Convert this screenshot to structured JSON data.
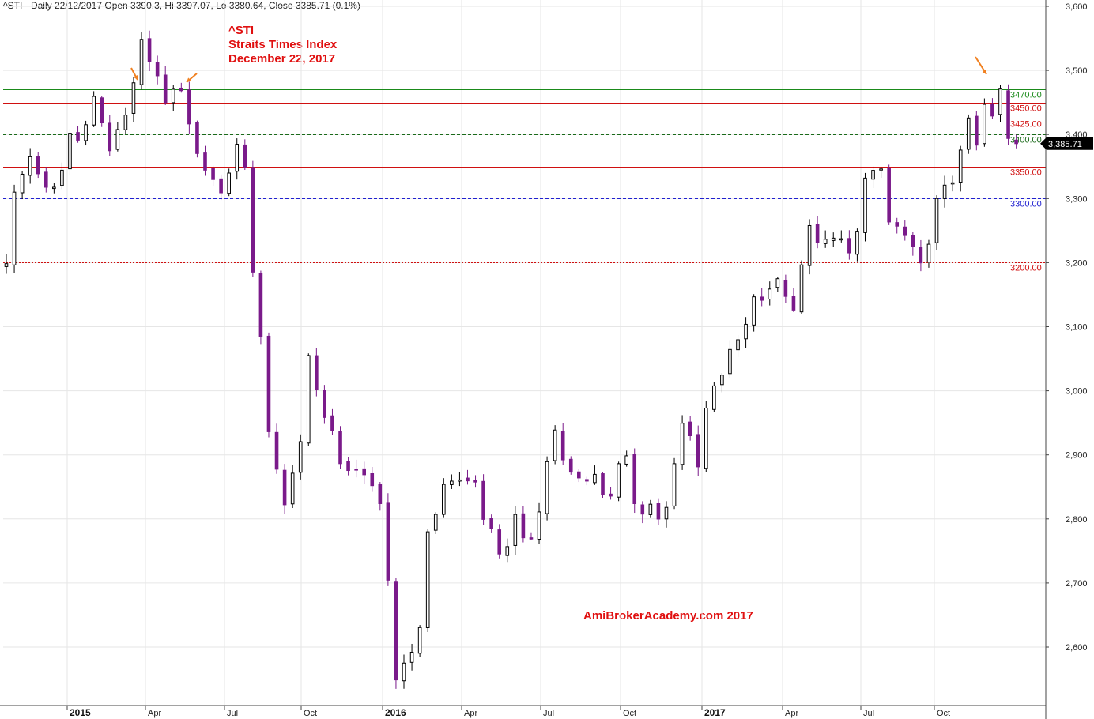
{
  "header": {
    "ticker_info": "^STI - Daily 22/12/2017 Open 3390.3, Hi 3397.07, Lo 3380.64, Close 3385.71 (0.1%)"
  },
  "title": {
    "symbol": "^STI",
    "name": "Straits Times Index",
    "date": "December 22, 2017"
  },
  "watermark": "AmiBrokerAcademy.com  2017",
  "chart_data": {
    "type": "candlestick",
    "ylim": [
      2510,
      3610
    ],
    "y_ticks": [
      {
        "value": 2600,
        "label": "2,600"
      },
      {
        "value": 2700,
        "label": "2,700"
      },
      {
        "value": 2800,
        "label": "2,800"
      },
      {
        "value": 2900,
        "label": "2,900"
      },
      {
        "value": 3000,
        "label": "3,000"
      },
      {
        "value": 3100,
        "label": "3,100"
      },
      {
        "value": 3200,
        "label": "3,200"
      },
      {
        "value": 3300,
        "label": "3,300"
      },
      {
        "value": 3400,
        "label": "3,400"
      },
      {
        "value": 3500,
        "label": "3,500"
      },
      {
        "value": 3600,
        "label": "3,600"
      }
    ],
    "x_ticks": [
      {
        "label": "2015",
        "bold": true
      },
      {
        "label": "Apr",
        "bold": false
      },
      {
        "label": "Jul",
        "bold": false
      },
      {
        "label": "Oct",
        "bold": false
      },
      {
        "label": "2016",
        "bold": true
      },
      {
        "label": "Apr",
        "bold": false
      },
      {
        "label": "Jul",
        "bold": false
      },
      {
        "label": "Oct",
        "bold": false
      },
      {
        "label": "2017",
        "bold": true
      },
      {
        "label": "Apr",
        "bold": false
      },
      {
        "label": "Jul",
        "bold": false
      },
      {
        "label": "Oct",
        "bold": false
      }
    ],
    "levels": [
      {
        "value": 3470,
        "label": "3470.00",
        "color": "#1a8a1a",
        "style": "solid"
      },
      {
        "value": 3450,
        "label": "3450.00",
        "color": "#d01010",
        "style": "solid"
      },
      {
        "value": 3425,
        "label": "3425.00",
        "color": "#d01010",
        "style": "dotted"
      },
      {
        "value": 3400,
        "label": "3400.00",
        "color": "#1a6a1a",
        "style": "dashed"
      },
      {
        "value": 3350,
        "label": "3350.00",
        "color": "#d01010",
        "style": "solid"
      },
      {
        "value": 3300,
        "label": "3300.00",
        "color": "#2020d0",
        "style": "dashed"
      },
      {
        "value": 3200,
        "label": "3200.00",
        "color": "#d01010",
        "style": "dotted"
      }
    ],
    "last_close": {
      "value": 3385.71,
      "label": "3,385.71"
    },
    "anchors": [
      [
        0,
        3195
      ],
      [
        1,
        3300
      ],
      [
        3,
        3360
      ],
      [
        5,
        3310
      ],
      [
        7,
        3345
      ],
      [
        8,
        3395
      ],
      [
        10,
        3410
      ],
      [
        11,
        3450
      ],
      [
        13,
        3380
      ],
      [
        15,
        3430
      ],
      [
        17,
        3545
      ],
      [
        18,
        3520
      ],
      [
        20,
        3460
      ],
      [
        22,
        3470
      ],
      [
        23,
        3410
      ],
      [
        25,
        3340
      ],
      [
        27,
        3310
      ],
      [
        29,
        3380
      ],
      [
        30,
        3350
      ],
      [
        31,
        3200
      ],
      [
        32,
        3090
      ],
      [
        33,
        2940
      ],
      [
        34,
        2890
      ],
      [
        35,
        2830
      ],
      [
        37,
        2920
      ],
      [
        38,
        3050
      ],
      [
        40,
        2960
      ],
      [
        42,
        2900
      ],
      [
        44,
        2880
      ],
      [
        45,
        2870
      ],
      [
        46,
        2850
      ],
      [
        47,
        2820
      ],
      [
        48,
        2700
      ],
      [
        49,
        2560
      ],
      [
        51,
        2600
      ],
      [
        52,
        2640
      ],
      [
        53,
        2780
      ],
      [
        55,
        2850
      ],
      [
        57,
        2860
      ],
      [
        59,
        2850
      ],
      [
        60,
        2800
      ],
      [
        61,
        2780
      ],
      [
        62,
        2740
      ],
      [
        63,
        2750
      ],
      [
        64,
        2800
      ],
      [
        66,
        2760
      ],
      [
        68,
        2880
      ],
      [
        69,
        2930
      ],
      [
        71,
        2880
      ],
      [
        72,
        2860
      ],
      [
        74,
        2870
      ],
      [
        75,
        2840
      ],
      [
        76,
        2830
      ],
      [
        77,
        2880
      ],
      [
        78,
        2900
      ],
      [
        79,
        2830
      ],
      [
        81,
        2810
      ],
      [
        82,
        2800
      ],
      [
        83,
        2830
      ],
      [
        85,
        2950
      ],
      [
        86,
        2920
      ],
      [
        87,
        2880
      ],
      [
        88,
        2970
      ],
      [
        89,
        3000
      ],
      [
        90,
        3030
      ],
      [
        91,
        3070
      ],
      [
        93,
        3100
      ],
      [
        94,
        3140
      ],
      [
        96,
        3160
      ],
      [
        97,
        3180
      ],
      [
        98,
        3150
      ],
      [
        99,
        3140
      ],
      [
        100,
        3200
      ],
      [
        101,
        3250
      ],
      [
        102,
        3240
      ],
      [
        103,
        3230
      ],
      [
        105,
        3240
      ],
      [
        106,
        3210
      ],
      [
        107,
        3240
      ],
      [
        108,
        3330
      ],
      [
        110,
        3340
      ],
      [
        111,
        3270
      ],
      [
        112,
        3250
      ],
      [
        114,
        3230
      ],
      [
        115,
        3210
      ],
      [
        116,
        3240
      ],
      [
        117,
        3290
      ],
      [
        119,
        3330
      ],
      [
        120,
        3380
      ],
      [
        121,
        3420
      ],
      [
        122,
        3380
      ],
      [
        123,
        3440
      ],
      [
        124,
        3430
      ],
      [
        125,
        3460
      ],
      [
        126,
        3400
      ],
      [
        127,
        3386
      ]
    ],
    "arrows": [
      {
        "label": "arrow-1"
      },
      {
        "label": "arrow-2"
      },
      {
        "label": "arrow-3"
      }
    ],
    "colors": {
      "up_candle": "#000000",
      "down_candle": "#7a1a8a",
      "grid": "#e6e6e6",
      "arrow": "#f08020",
      "title": "#e01010"
    }
  }
}
